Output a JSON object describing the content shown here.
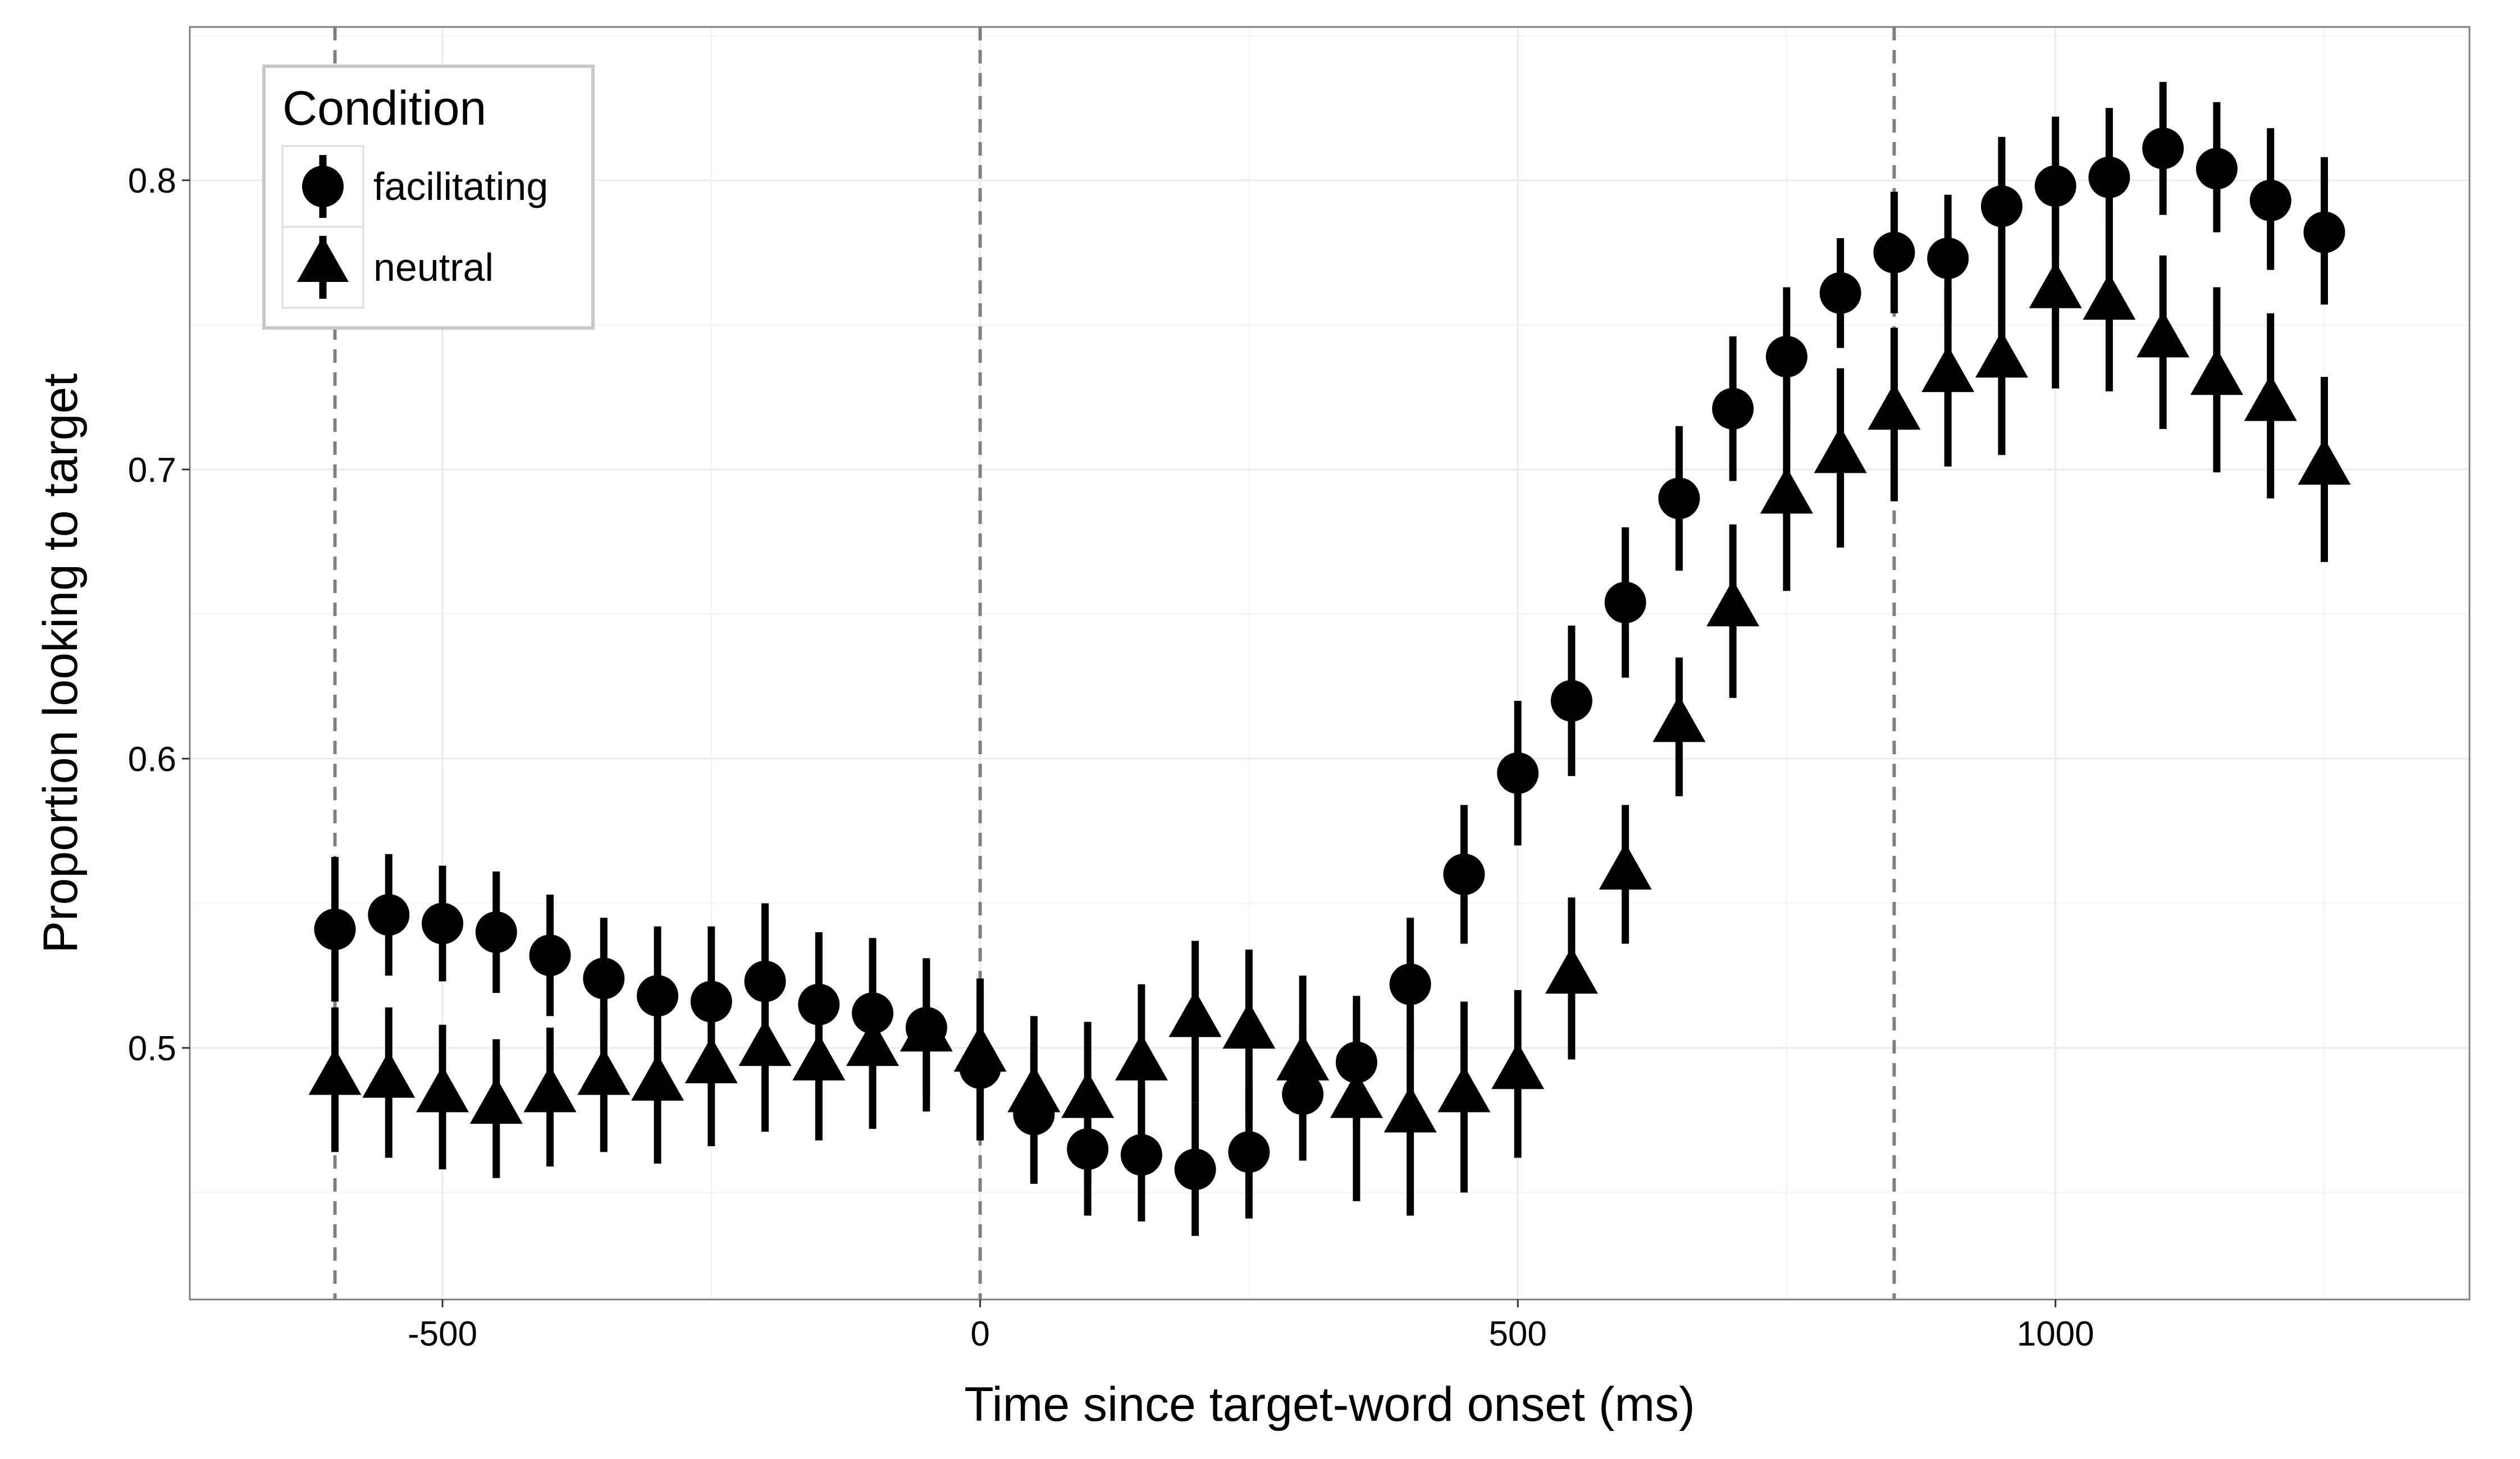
{
  "chart_data": {
    "type": "scatter",
    "title": "",
    "xlabel": "Time since target-word onset (ms)",
    "ylabel": "Proportion looking to target",
    "xlim": [
      -735,
      1385
    ],
    "ylim": [
      0.413,
      0.853
    ],
    "x_ticks": [
      -500,
      0,
      500,
      1000
    ],
    "x_tick_labels": [
      "-500",
      "0",
      "500",
      "1000"
    ],
    "y_ticks": [
      0.5,
      0.6,
      0.7,
      0.8
    ],
    "y_tick_labels": [
      "0.5",
      "0.6",
      "0.7",
      "0.8"
    ],
    "grid": true,
    "vlines": [
      -600,
      0,
      850
    ],
    "legend": {
      "title": "Condition",
      "position": "top-left",
      "entries": [
        {
          "label": "facilitating",
          "shape": "circle"
        },
        {
          "label": "neutral",
          "shape": "triangle"
        }
      ]
    },
    "x": [
      -600,
      -550,
      -500,
      -450,
      -400,
      -350,
      -300,
      -250,
      -200,
      -150,
      -100,
      -50,
      0,
      50,
      100,
      150,
      200,
      250,
      300,
      350,
      400,
      450,
      500,
      550,
      600,
      650,
      700,
      750,
      800,
      850,
      900,
      950,
      1000,
      1050,
      1100,
      1150,
      1200,
      1250
    ],
    "series": [
      {
        "name": "facilitating",
        "shape": "circle",
        "y": [
          0.541,
          0.546,
          0.543,
          0.54,
          0.532,
          0.524,
          0.518,
          0.516,
          0.523,
          0.515,
          0.512,
          0.507,
          0.493,
          0.477,
          0.465,
          0.463,
          0.458,
          0.464,
          0.484,
          0.495,
          0.522,
          0.56,
          0.595,
          0.62,
          0.654,
          0.69,
          0.721,
          0.739,
          0.761,
          0.775,
          0.773,
          0.791,
          0.798,
          0.801,
          0.811,
          0.804,
          0.793,
          0.782
        ],
        "lower": [
          0.516,
          0.525,
          0.523,
          0.519,
          0.511,
          0.503,
          0.494,
          0.49,
          0.496,
          0.492,
          0.489,
          0.484,
          0.468,
          0.453,
          0.442,
          0.44,
          0.435,
          0.441,
          0.461,
          0.473,
          0.499,
          0.536,
          0.57,
          0.594,
          0.628,
          0.665,
          0.696,
          0.715,
          0.742,
          0.754,
          0.751,
          0.768,
          0.774,
          0.778,
          0.788,
          0.782,
          0.769,
          0.757
        ],
        "upper": [
          0.566,
          0.567,
          0.563,
          0.561,
          0.553,
          0.545,
          0.542,
          0.542,
          0.55,
          0.54,
          0.538,
          0.531,
          0.518,
          0.501,
          0.488,
          0.486,
          0.481,
          0.487,
          0.507,
          0.518,
          0.545,
          0.584,
          0.62,
          0.646,
          0.68,
          0.715,
          0.746,
          0.763,
          0.78,
          0.796,
          0.795,
          0.815,
          0.822,
          0.825,
          0.834,
          0.827,
          0.818,
          0.808
        ]
      },
      {
        "name": "neutral",
        "shape": "triangle",
        "y": [
          0.489,
          0.488,
          0.483,
          0.479,
          0.483,
          0.489,
          0.487,
          0.493,
          0.499,
          0.494,
          0.499,
          0.504,
          0.497,
          0.483,
          0.481,
          0.494,
          0.509,
          0.505,
          0.494,
          0.481,
          0.476,
          0.483,
          0.491,
          0.524,
          0.56,
          0.611,
          0.651,
          0.69,
          0.704,
          0.719,
          0.732,
          0.737,
          0.761,
          0.757,
          0.744,
          0.731,
          0.722,
          0.7
        ],
        "lower": [
          0.464,
          0.462,
          0.458,
          0.455,
          0.459,
          0.464,
          0.46,
          0.466,
          0.471,
          0.468,
          0.472,
          0.478,
          0.47,
          0.455,
          0.453,
          0.466,
          0.481,
          0.476,
          0.463,
          0.447,
          0.442,
          0.45,
          0.462,
          0.496,
          0.536,
          0.587,
          0.621,
          0.658,
          0.673,
          0.689,
          0.701,
          0.705,
          0.728,
          0.727,
          0.714,
          0.699,
          0.69,
          0.668
        ],
        "upper": [
          0.514,
          0.514,
          0.508,
          0.503,
          0.507,
          0.514,
          0.514,
          0.52,
          0.527,
          0.52,
          0.526,
          0.53,
          0.524,
          0.511,
          0.509,
          0.522,
          0.537,
          0.534,
          0.525,
          0.515,
          0.51,
          0.516,
          0.52,
          0.552,
          0.584,
          0.635,
          0.681,
          0.722,
          0.735,
          0.749,
          0.763,
          0.769,
          0.794,
          0.787,
          0.774,
          0.763,
          0.754,
          0.732
        ]
      }
    ]
  }
}
